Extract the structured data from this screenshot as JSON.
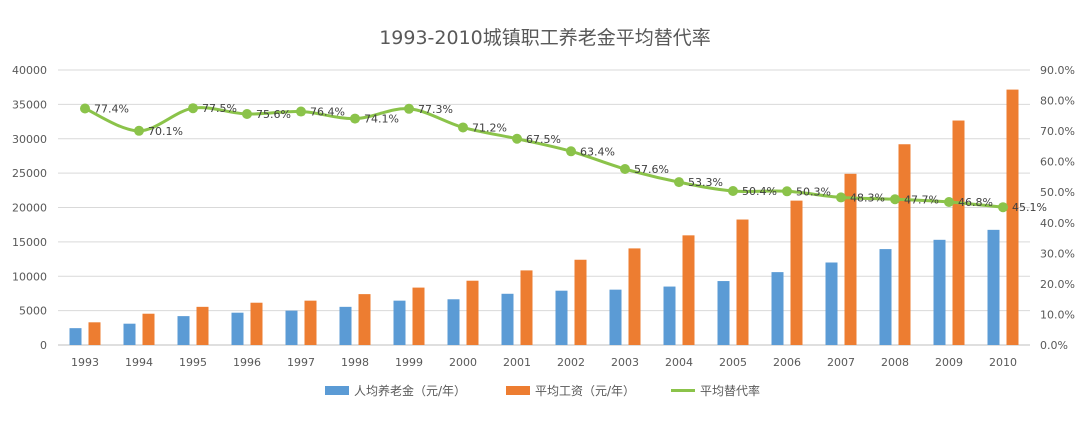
{
  "chart_data": {
    "type": "bar",
    "title": "1993-2010城镇职工养老金平均替代率",
    "categories": [
      "1993",
      "1994",
      "1995",
      "1996",
      "1997",
      "1998",
      "1999",
      "2000",
      "2001",
      "2002",
      "2003",
      "2004",
      "2005",
      "2006",
      "2007",
      "2008",
      "2009",
      "2010"
    ],
    "series": [
      {
        "name": "人均养老金（元/年）",
        "type": "bar",
        "axis": "left",
        "color": "#5B9BD5",
        "values": [
          2450,
          3100,
          4200,
          4700,
          5000,
          5550,
          6450,
          6650,
          7450,
          7900,
          8050,
          8500,
          9300,
          10600,
          12000,
          13950,
          15300,
          16750
        ]
      },
      {
        "name": "平均工资（元/年）",
        "type": "bar",
        "axis": "left",
        "color": "#ED7D31",
        "values": [
          3300,
          4550,
          5550,
          6150,
          6450,
          7400,
          8350,
          9350,
          10850,
          12400,
          14050,
          15950,
          18250,
          21000,
          24900,
          29200,
          32650,
          37150
        ]
      },
      {
        "name": "平均替代率",
        "type": "line",
        "axis": "right",
        "color": "#8BC34A",
        "values": [
          77.4,
          70.1,
          77.5,
          75.6,
          76.4,
          74.1,
          77.3,
          71.2,
          67.5,
          63.4,
          57.6,
          53.3,
          50.4,
          50.3,
          48.3,
          47.7,
          46.8,
          45.1
        ],
        "labels": [
          "77.4%",
          "70.1%",
          "77.5%",
          "75.6%",
          "76.4%",
          "74.1%",
          "77.3%",
          "71.2%",
          "67.5%",
          "63.4%",
          "57.6%",
          "53.3%",
          "50.4%",
          "50.3%",
          "48.3%",
          "47.7%",
          "46.8%",
          "45.1%"
        ]
      }
    ],
    "left_axis": {
      "min": 0,
      "max": 40000,
      "ticks": [
        "0",
        "5000",
        "10000",
        "15000",
        "20000",
        "25000",
        "30000",
        "35000",
        "40000"
      ]
    },
    "right_axis": {
      "min": 0,
      "max": 90,
      "ticks": [
        "0.0%",
        "10.0%",
        "20.0%",
        "30.0%",
        "40.0%",
        "50.0%",
        "60.0%",
        "70.0%",
        "80.0%",
        "90.0%"
      ]
    },
    "grid": true,
    "legend_position": "bottom"
  }
}
